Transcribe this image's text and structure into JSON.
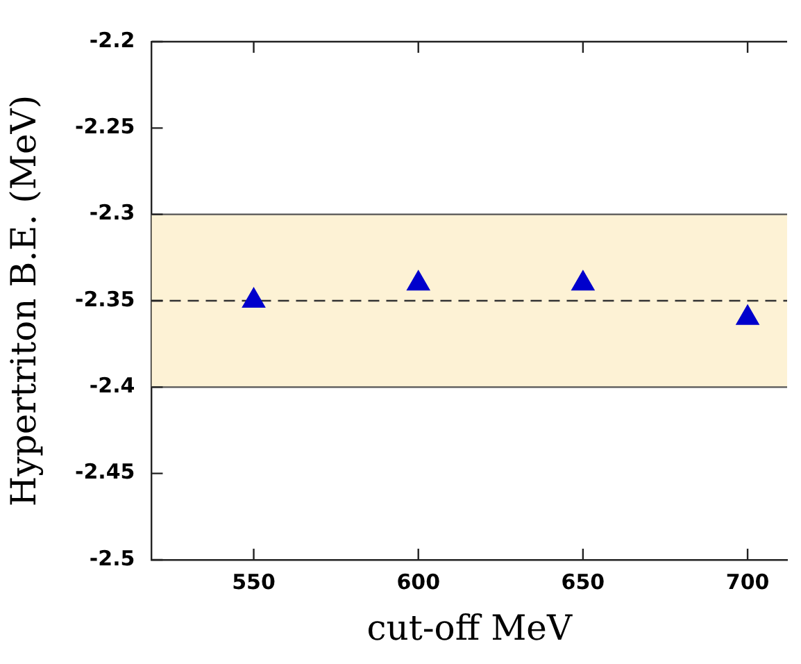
{
  "chart_data": {
    "type": "scatter",
    "xlabel": "cut-off MeV",
    "ylabel": "Hypertriton B.E. (MeV)",
    "x": [
      550,
      600,
      650,
      700
    ],
    "series": [
      {
        "color": "#0000cc",
        "values": [
          -2.35,
          -2.34,
          -2.34,
          -2.36
        ]
      }
    ],
    "xlim": [
      519,
      712
    ],
    "xticks": [
      550,
      600,
      650,
      700
    ],
    "ylim": [
      -2.5,
      -2.2
    ],
    "yticks": [
      -2.5,
      -2.45,
      -2.4,
      -2.35,
      -2.3,
      -2.25,
      -2.2
    ],
    "bands": [
      {
        "axis": "y",
        "from": -2.4,
        "to": -2.3,
        "color": "#fdf2d5"
      }
    ],
    "ref_lines": [
      {
        "axis": "y",
        "value": -2.35,
        "line_style": "dashed",
        "color": "#333333"
      }
    ],
    "marker": "triangle",
    "grid": false,
    "legend": false
  }
}
